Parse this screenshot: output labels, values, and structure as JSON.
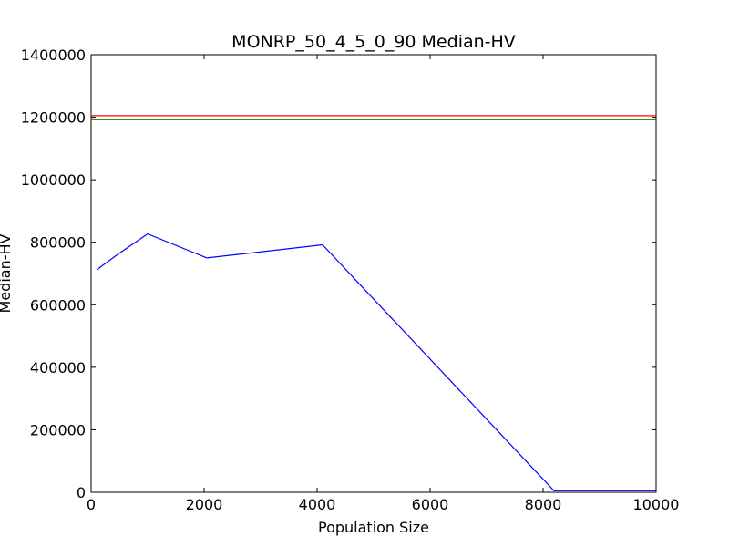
{
  "chart_data": {
    "type": "line",
    "title": "MONRP_50_4_5_0_90 Median-HV",
    "xlabel": "Population Size",
    "ylabel": "Median-HV",
    "xlim": [
      0,
      10000
    ],
    "ylim": [
      0,
      1400000
    ],
    "xticks": [
      0,
      2000,
      4000,
      6000,
      8000,
      10000
    ],
    "yticks": [
      0,
      200000,
      400000,
      600000,
      800000,
      1000000,
      1200000,
      1400000
    ],
    "grid": false,
    "legend": "none",
    "series": [
      {
        "color": "#0000ff",
        "x": [
          100,
          500,
          1000,
          2048,
          4096,
          8192,
          10000
        ],
        "y": [
          712000,
          765000,
          827000,
          750000,
          792000,
          5000,
          5000
        ]
      },
      {
        "color": "#ff0000",
        "x": [
          0,
          10000
        ],
        "y": [
          1205000,
          1205000
        ]
      },
      {
        "color": "#008000",
        "x": [
          0,
          10000
        ],
        "y": [
          1192000,
          1192000
        ]
      }
    ]
  }
}
